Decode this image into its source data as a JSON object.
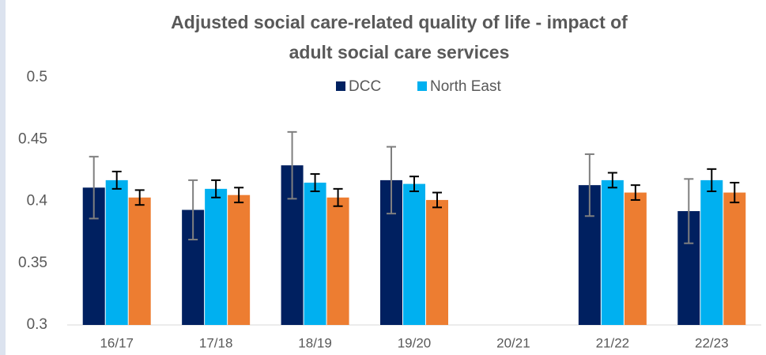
{
  "chart_data": {
    "type": "bar",
    "title": [
      "Adjusted social care-related quality of life - impact of",
      "adult social care services"
    ],
    "categories": [
      "16/17",
      "17/18",
      "18/19",
      "19/20",
      "20/21",
      "21/22",
      "22/23"
    ],
    "series": [
      {
        "name": "DCC",
        "color": "#002060",
        "values": [
          0.411,
          0.393,
          0.429,
          0.417,
          null,
          0.413,
          0.392
        ],
        "errors": [
          0.025,
          0.024,
          0.027,
          0.027,
          null,
          0.025,
          0.026
        ]
      },
      {
        "name": "North East",
        "color": "#00b0f0",
        "values": [
          0.417,
          0.41,
          0.415,
          0.414,
          null,
          0.417,
          0.417
        ],
        "errors": [
          0.007,
          0.007,
          0.007,
          0.006,
          null,
          0.006,
          0.009
        ]
      },
      {
        "color": "#ed7d31",
        "values": [
          0.403,
          0.405,
          0.403,
          0.401,
          null,
          0.407,
          0.407
        ],
        "errors": [
          0.006,
          0.006,
          0.007,
          0.006,
          null,
          0.006,
          0.008
        ]
      }
    ],
    "ylim": [
      0.3,
      0.5
    ],
    "yticks": [
      0.3,
      0.35,
      0.4,
      0.45,
      0.5
    ],
    "grid": false,
    "legend": "top"
  }
}
